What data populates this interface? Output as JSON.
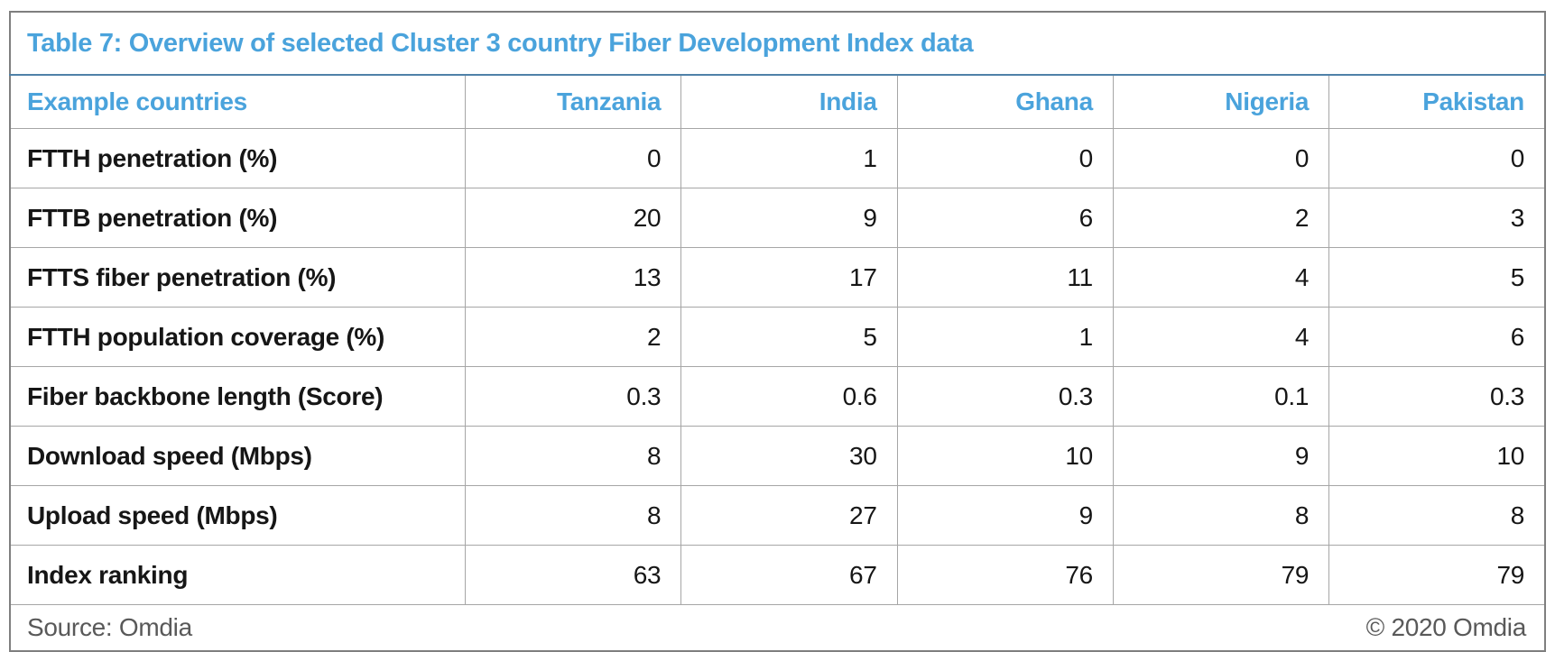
{
  "title": "Table 7: Overview of selected Cluster 3 country Fiber Development Index data",
  "table": {
    "header": [
      "Example countries",
      "Tanzania",
      "India",
      "Ghana",
      "Nigeria",
      "Pakistan"
    ],
    "rows": [
      {
        "label": "FTTH penetration (%)",
        "values": [
          "0",
          "1",
          "0",
          "0",
          "0"
        ]
      },
      {
        "label": "FTTB penetration (%)",
        "values": [
          "20",
          "9",
          "6",
          "2",
          "3"
        ]
      },
      {
        "label": "FTTS fiber penetration (%)",
        "values": [
          "13",
          "17",
          "11",
          "4",
          "5"
        ]
      },
      {
        "label": "FTTH population coverage (%)",
        "values": [
          "2",
          "5",
          "1",
          "4",
          "6"
        ]
      },
      {
        "label": "Fiber backbone length (Score)",
        "values": [
          "0.3",
          "0.6",
          "0.3",
          "0.1",
          "0.3"
        ]
      },
      {
        "label": "Download speed (Mbps)",
        "values": [
          "8",
          "30",
          "10",
          "9",
          "10"
        ]
      },
      {
        "label": "Upload speed (Mbps)",
        "values": [
          "8",
          "27",
          "9",
          "8",
          "8"
        ]
      },
      {
        "label": "Index ranking",
        "values": [
          "63",
          "67",
          "76",
          "79",
          "79"
        ]
      }
    ]
  },
  "footer": {
    "source": "Source: Omdia",
    "copyright": "© 2020 Omdia"
  },
  "colors": {
    "accent_blue": "#4aa3dc",
    "title_rule": "#4f81a8",
    "outer_border": "#7f7f7f",
    "grid_line": "#a6a6a6",
    "body_text": "#161616",
    "footer_text": "#595959"
  },
  "chart_data": {
    "type": "table",
    "title": "Table 7: Overview of selected Cluster 3 country Fiber Development Index data",
    "columns": [
      "Example countries",
      "Tanzania",
      "India",
      "Ghana",
      "Nigeria",
      "Pakistan"
    ],
    "rows": [
      [
        "FTTH penetration (%)",
        0,
        1,
        0,
        0,
        0
      ],
      [
        "FTTB penetration (%)",
        20,
        9,
        6,
        2,
        3
      ],
      [
        "FTTS fiber penetration (%)",
        13,
        17,
        11,
        4,
        5
      ],
      [
        "FTTH population coverage (%)",
        2,
        5,
        1,
        4,
        6
      ],
      [
        "Fiber backbone length (Score)",
        0.3,
        0.6,
        0.3,
        0.1,
        0.3
      ],
      [
        "Download speed (Mbps)",
        8,
        30,
        10,
        9,
        10
      ],
      [
        "Upload speed (Mbps)",
        8,
        27,
        9,
        8,
        8
      ],
      [
        "Index ranking",
        63,
        67,
        76,
        79,
        79
      ]
    ],
    "source": "Omdia"
  }
}
